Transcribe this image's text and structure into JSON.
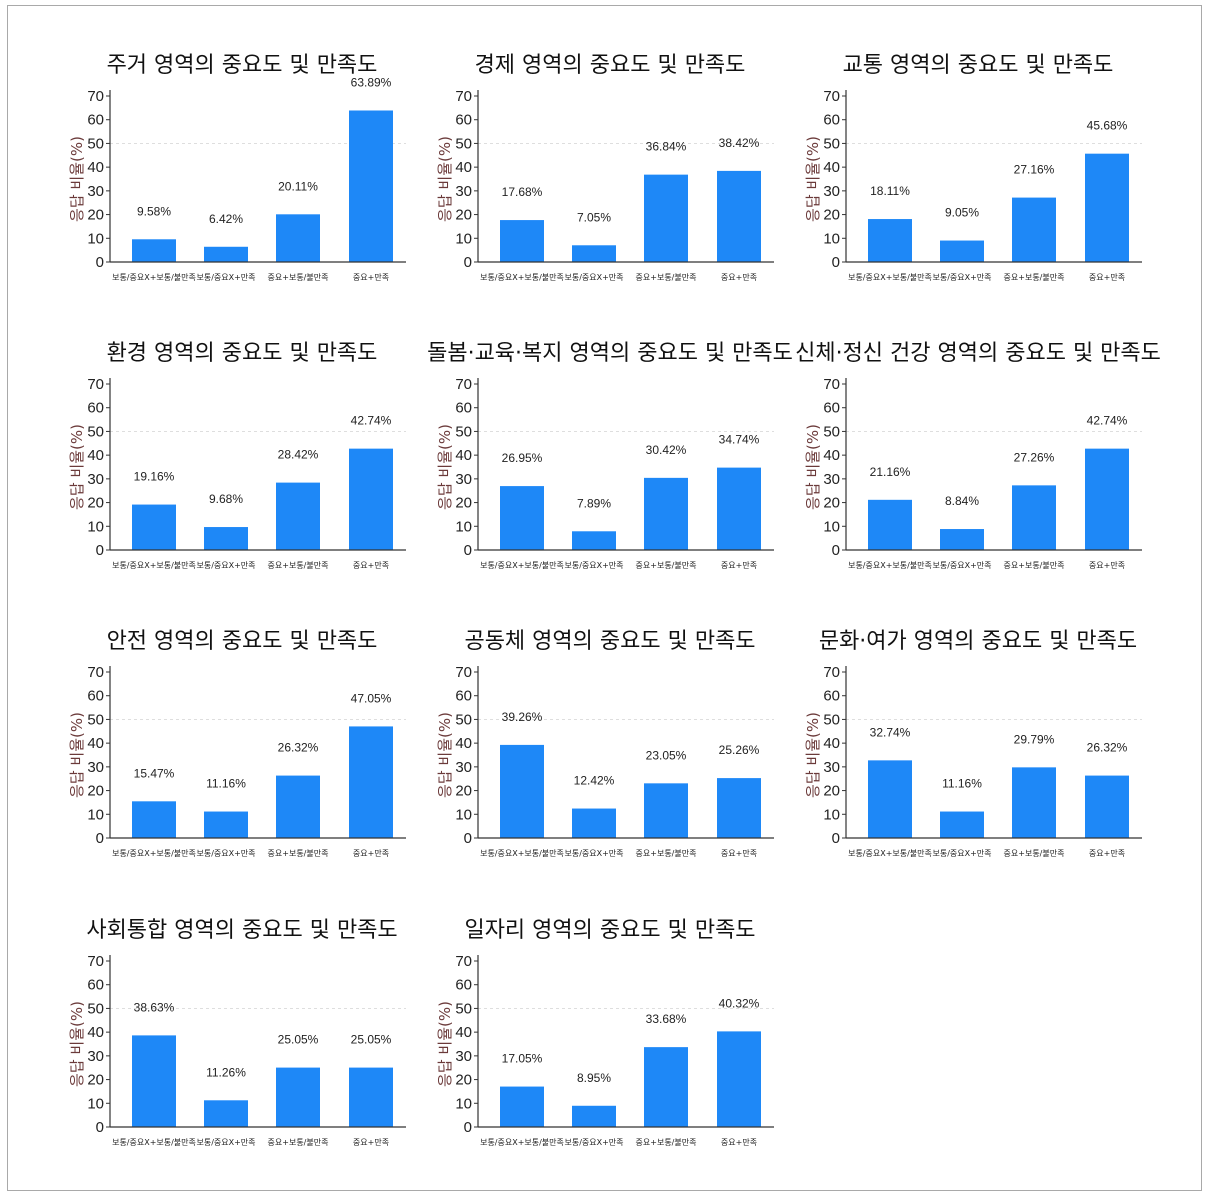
{
  "colors": {
    "bar": "#1e88f7",
    "axis": "#333333",
    "grid": "#cccccc"
  },
  "chart_data": [
    {
      "type": "bar",
      "title": "주거 영역의 중요도 및 만족도",
      "ylabel": "응답 비율(%)",
      "ylim": [
        0,
        70
      ],
      "yticks": [
        0,
        10,
        20,
        30,
        40,
        50,
        60,
        70
      ],
      "categories": [
        "보통/중요X+보통/불만족",
        "보통/중요X+만족",
        "중요+보통/불만족",
        "중요+만족"
      ],
      "values": [
        9.58,
        6.42,
        20.11,
        63.89
      ],
      "labels": [
        "9.58%",
        "6.42%",
        "20.11%",
        "63.89%"
      ]
    },
    {
      "type": "bar",
      "title": "경제 영역의 중요도 및 만족도",
      "ylabel": "응답 비율(%)",
      "ylim": [
        0,
        70
      ],
      "yticks": [
        0,
        10,
        20,
        30,
        40,
        50,
        60,
        70
      ],
      "categories": [
        "보통/중요X+보통/불만족",
        "보통/중요X+만족",
        "중요+보통/불만족",
        "중요+만족"
      ],
      "values": [
        17.68,
        7.05,
        36.84,
        38.42
      ],
      "labels": [
        "17.68%",
        "7.05%",
        "36.84%",
        "38.42%"
      ]
    },
    {
      "type": "bar",
      "title": "교통 영역의 중요도 및 만족도",
      "ylabel": "응답 비율(%)",
      "ylim": [
        0,
        70
      ],
      "yticks": [
        0,
        10,
        20,
        30,
        40,
        50,
        60,
        70
      ],
      "categories": [
        "보통/중요X+보통/불만족",
        "보통/중요X+만족",
        "중요+보통/불만족",
        "중요+만족"
      ],
      "values": [
        18.11,
        9.05,
        27.16,
        45.68
      ],
      "labels": [
        "18.11%",
        "9.05%",
        "27.16%",
        "45.68%"
      ]
    },
    {
      "type": "bar",
      "title": "환경 영역의 중요도 및 만족도",
      "ylabel": "응답 비율(%)",
      "ylim": [
        0,
        70
      ],
      "yticks": [
        0,
        10,
        20,
        30,
        40,
        50,
        60,
        70
      ],
      "categories": [
        "보통/중요X+보통/불만족",
        "보통/중요X+만족",
        "중요+보통/불만족",
        "중요+만족"
      ],
      "values": [
        19.16,
        9.68,
        28.42,
        42.74
      ],
      "labels": [
        "19.16%",
        "9.68%",
        "28.42%",
        "42.74%"
      ]
    },
    {
      "type": "bar",
      "title": "돌봄·교육·복지 영역의 중요도 및 만족도",
      "ylabel": "응답 비율(%)",
      "ylim": [
        0,
        70
      ],
      "yticks": [
        0,
        10,
        20,
        30,
        40,
        50,
        60,
        70
      ],
      "categories": [
        "보통/중요X+보통/불만족",
        "보통/중요X+만족",
        "중요+보통/불만족",
        "중요+만족"
      ],
      "values": [
        26.95,
        7.89,
        30.42,
        34.74
      ],
      "labels": [
        "26.95%",
        "7.89%",
        "30.42%",
        "34.74%"
      ]
    },
    {
      "type": "bar",
      "title": "신체·정신 건강 영역의 중요도 및 만족도",
      "ylabel": "응답 비율(%)",
      "ylim": [
        0,
        70
      ],
      "yticks": [
        0,
        10,
        20,
        30,
        40,
        50,
        60,
        70
      ],
      "categories": [
        "보통/중요X+보통/불만족",
        "보통/중요X+만족",
        "중요+보통/불만족",
        "중요+만족"
      ],
      "values": [
        21.16,
        8.84,
        27.26,
        42.74
      ],
      "labels": [
        "21.16%",
        "8.84%",
        "27.26%",
        "42.74%"
      ]
    },
    {
      "type": "bar",
      "title": "안전 영역의 중요도 및 만족도",
      "ylabel": "응답 비율(%)",
      "ylim": [
        0,
        70
      ],
      "yticks": [
        0,
        10,
        20,
        30,
        40,
        50,
        60,
        70
      ],
      "categories": [
        "보통/중요X+보통/불만족",
        "보통/중요X+만족",
        "중요+보통/불만족",
        "중요+만족"
      ],
      "values": [
        15.47,
        11.16,
        26.32,
        47.05
      ],
      "labels": [
        "15.47%",
        "11.16%",
        "26.32%",
        "47.05%"
      ]
    },
    {
      "type": "bar",
      "title": "공동체 영역의 중요도 및 만족도",
      "ylabel": "응답 비율(%)",
      "ylim": [
        0,
        70
      ],
      "yticks": [
        0,
        10,
        20,
        30,
        40,
        50,
        60,
        70
      ],
      "categories": [
        "보통/중요X+보통/불만족",
        "보통/중요X+만족",
        "중요+보통/불만족",
        "중요+만족"
      ],
      "values": [
        39.26,
        12.42,
        23.05,
        25.26
      ],
      "labels": [
        "39.26%",
        "12.42%",
        "23.05%",
        "25.26%"
      ]
    },
    {
      "type": "bar",
      "title": "문화·여가 영역의 중요도 및 만족도",
      "ylabel": "응답 비율(%)",
      "ylim": [
        0,
        70
      ],
      "yticks": [
        0,
        10,
        20,
        30,
        40,
        50,
        60,
        70
      ],
      "categories": [
        "보통/중요X+보통/불만족",
        "보통/중요X+만족",
        "중요+보통/불만족",
        "중요+만족"
      ],
      "values": [
        32.74,
        11.16,
        29.79,
        26.32
      ],
      "labels": [
        "32.74%",
        "11.16%",
        "29.79%",
        "26.32%"
      ]
    },
    {
      "type": "bar",
      "title": "사회통합 영역의 중요도 및 만족도",
      "ylabel": "응답 비율(%)",
      "ylim": [
        0,
        70
      ],
      "yticks": [
        0,
        10,
        20,
        30,
        40,
        50,
        60,
        70
      ],
      "categories": [
        "보통/중요X+보통/불만족",
        "보통/중요X+만족",
        "중요+보통/불만족",
        "중요+만족"
      ],
      "values": [
        38.63,
        11.26,
        25.05,
        25.05
      ],
      "labels": [
        "38.63%",
        "11.26%",
        "25.05%",
        "25.05%"
      ]
    },
    {
      "type": "bar",
      "title": "일자리 영역의 중요도 및 만족도",
      "ylabel": "응답 비율(%)",
      "ylim": [
        0,
        70
      ],
      "yticks": [
        0,
        10,
        20,
        30,
        40,
        50,
        60,
        70
      ],
      "categories": [
        "보통/중요X+보통/불만족",
        "보통/중요X+만족",
        "중요+보통/불만족",
        "중요+만족"
      ],
      "values": [
        17.05,
        8.95,
        33.68,
        40.32
      ],
      "labels": [
        "17.05%",
        "8.95%",
        "33.68%",
        "40.32%"
      ]
    }
  ]
}
